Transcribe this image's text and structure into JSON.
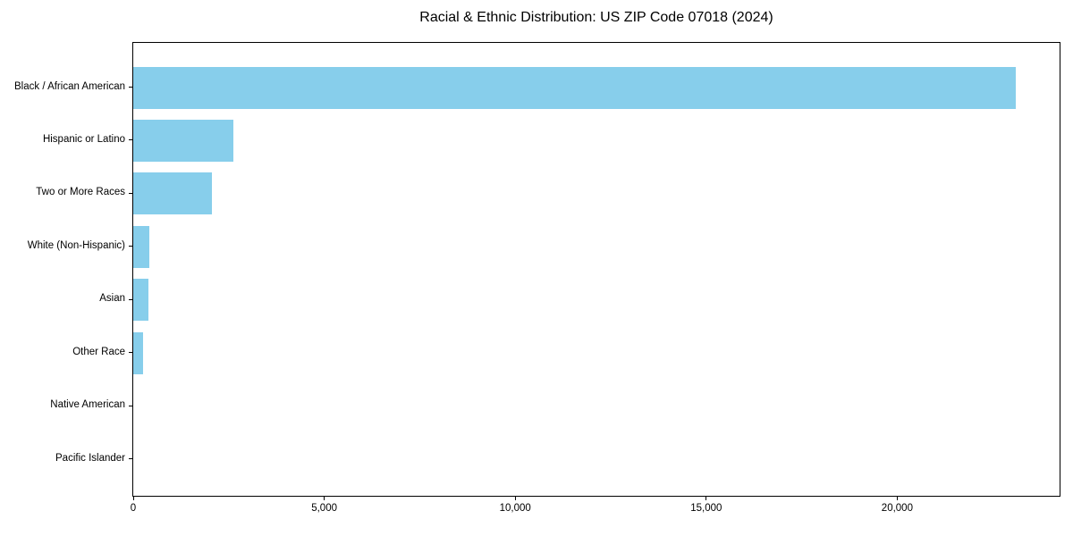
{
  "chart_data": {
    "type": "bar",
    "orientation": "horizontal",
    "title": "Racial & Ethnic Distribution: US ZIP Code 07018 (2024)",
    "categories": [
      "Black / African American",
      "Hispanic or Latino",
      "Two or More Races",
      "White (Non-Hispanic)",
      "Asian",
      "Other Race",
      "Native American",
      "Pacific Islander"
    ],
    "values": [
      23100,
      2620,
      2060,
      430,
      400,
      250,
      0,
      0
    ],
    "xlabel": "",
    "ylabel": "",
    "xlim": [
      0,
      24250
    ],
    "xticks": [
      {
        "value": 0,
        "label": "0"
      },
      {
        "value": 5000,
        "label": "5,000"
      },
      {
        "value": 10000,
        "label": "10,000"
      },
      {
        "value": 15000,
        "label": "15,000"
      },
      {
        "value": 20000,
        "label": "20,000"
      }
    ],
    "bar_color": "#87CEEB",
    "axis_color": "#000000",
    "background": "#FFFFFF",
    "grid": false,
    "legend": "none"
  }
}
